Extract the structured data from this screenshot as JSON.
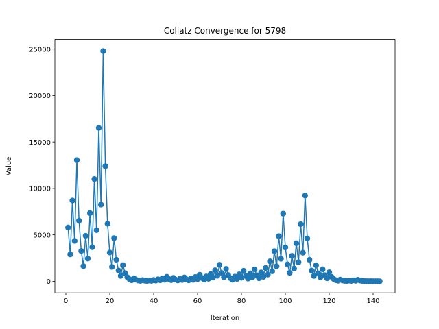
{
  "chart_data": {
    "type": "line",
    "title": "Collatz Convergence for 5798",
    "xlabel": "Iteration",
    "ylabel": "Value",
    "xlim": [
      -5,
      150
    ],
    "ylim": [
      -1240,
      26040
    ],
    "xticks": [
      0,
      20,
      40,
      60,
      80,
      100,
      120,
      140
    ],
    "yticks": [
      0,
      5000,
      10000,
      15000,
      20000,
      25000
    ],
    "grid": false,
    "legend": "none",
    "color": "#1f77b4",
    "x": [
      1,
      2,
      3,
      4,
      5,
      6,
      7,
      8,
      9,
      10,
      11,
      12,
      13,
      14,
      15,
      16,
      17,
      18,
      19,
      20,
      21,
      22,
      23,
      24,
      25,
      26,
      27,
      28,
      29,
      30,
      31,
      32,
      33,
      34,
      35,
      36,
      37,
      38,
      39,
      40,
      41,
      42,
      43,
      44,
      45,
      46,
      47,
      48,
      49,
      50,
      51,
      52,
      53,
      54,
      55,
      56,
      57,
      58,
      59,
      60,
      61,
      62,
      63,
      64,
      65,
      66,
      67,
      68,
      69,
      70,
      71,
      72,
      73,
      74,
      75,
      76,
      77,
      78,
      79,
      80,
      81,
      82,
      83,
      84,
      85,
      86,
      87,
      88,
      89,
      90,
      91,
      92,
      93,
      94,
      95,
      96,
      97,
      98,
      99,
      100,
      101,
      102,
      103,
      104,
      105,
      106,
      107,
      108,
      109,
      110,
      111,
      112,
      113,
      114,
      115,
      116,
      117,
      118,
      119,
      120,
      121,
      122,
      123,
      124,
      125,
      126,
      127,
      128,
      129,
      130,
      131,
      132,
      133,
      134,
      135,
      136,
      137,
      138,
      139,
      140,
      141,
      142,
      143
    ],
    "values": [
      5798,
      2899,
      8698,
      4349,
      13048,
      6524,
      3262,
      1631,
      4894,
      2447,
      7342,
      3671,
      11014,
      5507,
      16522,
      8261,
      24784,
      12392,
      6196,
      3098,
      1549,
      4648,
      2324,
      1162,
      581,
      1744,
      872,
      436,
      218,
      109,
      328,
      164,
      82,
      41,
      124,
      62,
      31,
      94,
      47,
      142,
      71,
      214,
      107,
      322,
      161,
      484,
      242,
      121,
      364,
      182,
      91,
      274,
      137,
      412,
      206,
      103,
      310,
      155,
      466,
      233,
      700,
      350,
      175,
      526,
      263,
      790,
      395,
      1186,
      593,
      1780,
      890,
      445,
      1336,
      668,
      334,
      167,
      502,
      251,
      754,
      377,
      1132,
      566,
      283,
      850,
      425,
      1276,
      638,
      319,
      958,
      479,
      1438,
      719,
      2158,
      1079,
      3238,
      1619,
      4858,
      2429,
      7288,
      3644,
      1822,
      911,
      2734,
      1367,
      4102,
      2051,
      6154,
      3077,
      9232,
      4616,
      2308,
      1154,
      577,
      1732,
      866,
      433,
      1300,
      650,
      325,
      976,
      488,
      244,
      122,
      61,
      184,
      92,
      46,
      23,
      70,
      35,
      106,
      53,
      160,
      80,
      40,
      20,
      10,
      5,
      16,
      8,
      4,
      2,
      1
    ]
  }
}
